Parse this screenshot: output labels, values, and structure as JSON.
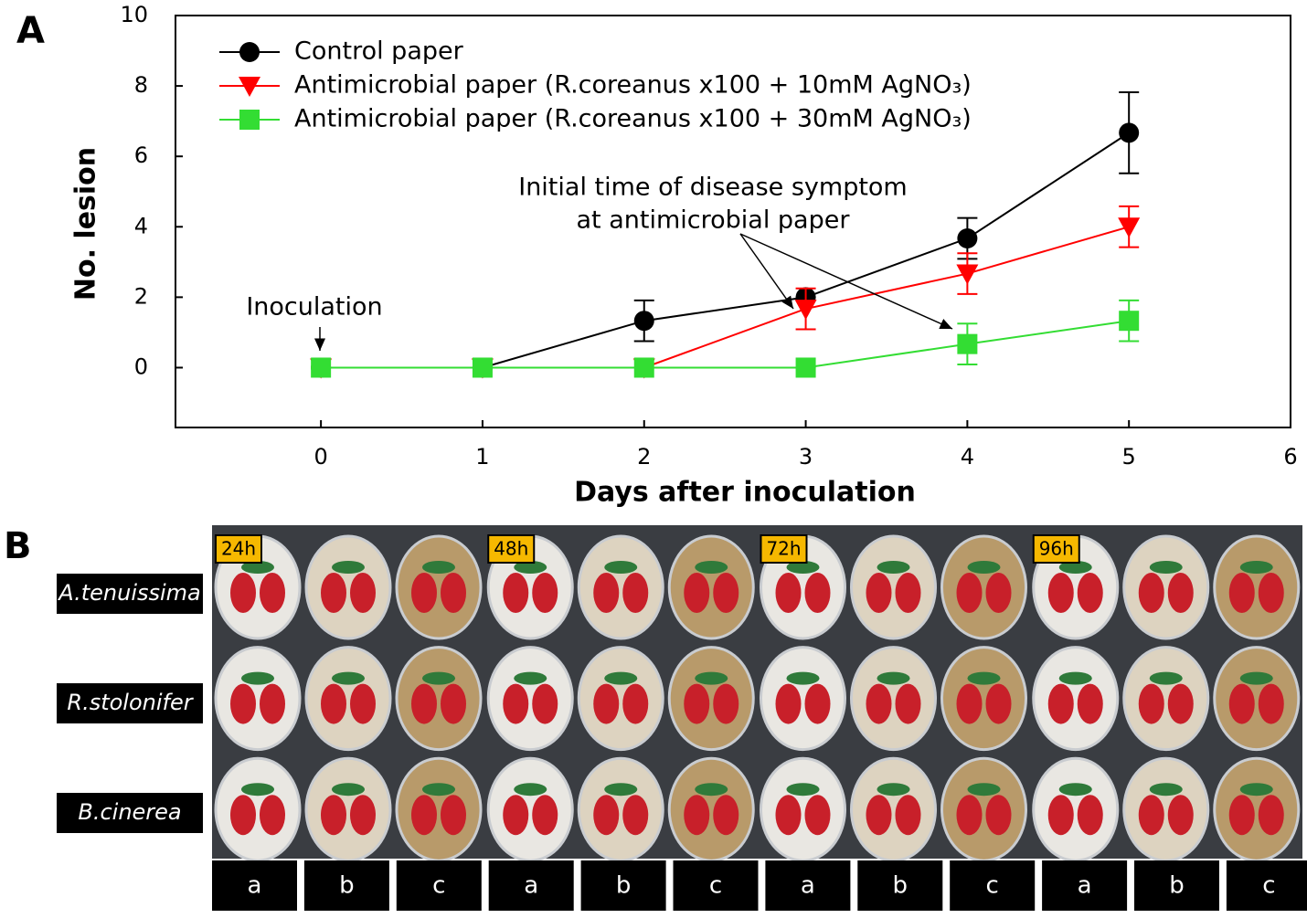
{
  "chart_data": {
    "type": "line",
    "panel_label": "A",
    "x_label": "Days after inoculation",
    "y_label": "No. lesion",
    "x": [
      0,
      1,
      2,
      3,
      4,
      5
    ],
    "series": [
      {
        "name": "Control paper",
        "color": "#000000",
        "marker": "circle",
        "values": [
          0,
          0,
          1.33,
          2,
          3.67,
          6.67
        ],
        "errors": [
          0,
          0,
          0.58,
          0,
          0.58,
          1.15
        ]
      },
      {
        "name": "Antimicrobial paper (R.coreanus x100 + 10mM AgNO₃)",
        "color": "#ff0000",
        "marker": "triangle-down",
        "values": [
          0,
          0,
          0,
          1.67,
          2.67,
          4
        ],
        "errors": [
          0,
          0,
          0,
          0.58,
          0.58,
          0.58
        ]
      },
      {
        "name": "Antimicrobial paper (R.coreanus x100 + 30mM AgNO₃)",
        "color": "#33dd33",
        "marker": "square",
        "values": [
          0,
          0,
          0,
          0,
          0.67,
          1.33
        ],
        "errors": [
          0,
          0,
          0,
          0,
          0.58,
          0.58
        ]
      }
    ],
    "xlim": [
      -0.9,
      6
    ],
    "ylim": [
      -1.7,
      10
    ],
    "xticks": [
      0,
      1,
      2,
      3,
      4,
      5,
      6
    ],
    "yticks": [
      0,
      2,
      4,
      6,
      8,
      10
    ],
    "legend": "upper-left",
    "inoculation_label": "Inoculation",
    "symptom_label": [
      "Initial time of disease symptom",
      "at antimicrobial paper"
    ]
  },
  "panel_b": {
    "label": "B",
    "time_labels": [
      "24h",
      "48h",
      "72h",
      "96h"
    ],
    "row_labels": [
      "A.tenuissima",
      "R.stolonifer",
      "B.cinerea"
    ],
    "column_labels": [
      "a",
      "b",
      "c",
      "a",
      "b",
      "c",
      "a",
      "b",
      "c",
      "a",
      "b",
      "c"
    ]
  }
}
